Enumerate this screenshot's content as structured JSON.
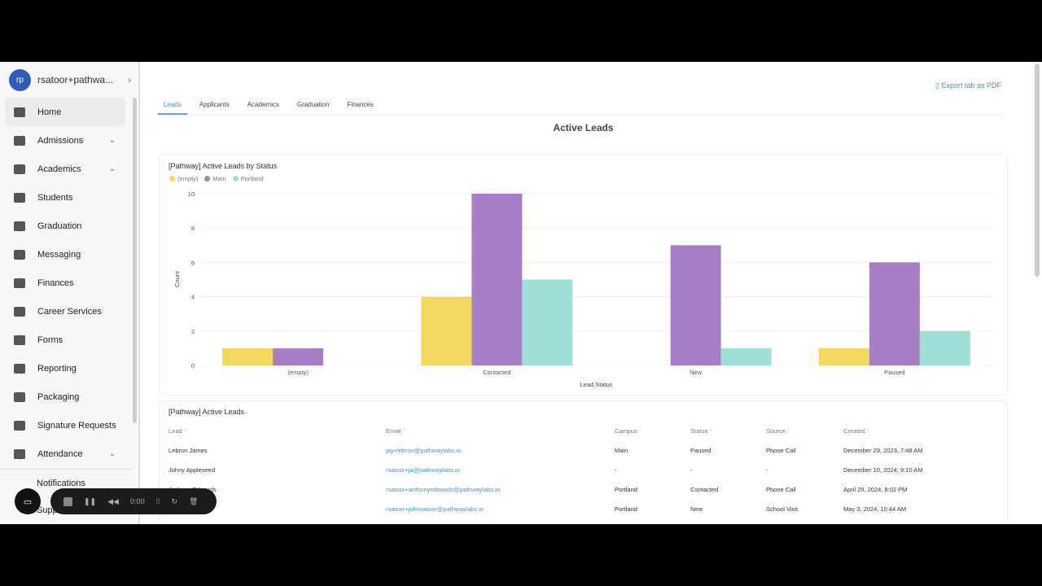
{
  "user": {
    "initials": "rp",
    "name": "rsatoor+pathwa..."
  },
  "nav": [
    {
      "label": "Home",
      "chev": false
    },
    {
      "label": "Admissions",
      "chev": true
    },
    {
      "label": "Academics",
      "chev": true
    },
    {
      "label": "Students",
      "chev": false
    },
    {
      "label": "Graduation",
      "chev": false
    },
    {
      "label": "Messaging",
      "chev": false
    },
    {
      "label": "Finances",
      "chev": false
    },
    {
      "label": "Career Services",
      "chev": false
    },
    {
      "label": "Forms",
      "chev": false
    },
    {
      "label": "Reporting",
      "chev": false
    },
    {
      "label": "Packaging",
      "chev": false
    },
    {
      "label": "Signature Requests",
      "chev": false
    },
    {
      "label": "Attendance",
      "chev": true
    }
  ],
  "footer_nav": {
    "notifications": "Notifications",
    "support": "Supp"
  },
  "export_label": "Export tab as PDF",
  "tabs": [
    "Leads",
    "Applicants",
    "Academics",
    "Graduation",
    "Finances"
  ],
  "page_title": "Active Leads",
  "chart_data": {
    "type": "bar",
    "title": "[Pathway] Active Leads by Status",
    "xlabel": "Lead Status",
    "ylabel": "Count",
    "ylim": [
      0,
      10
    ],
    "yticks": [
      "0",
      "2",
      "4",
      "6",
      "8",
      "10"
    ],
    "categories": [
      "(empty)",
      "Contacted",
      "New",
      "Paused"
    ],
    "series": [
      {
        "name": "(empty)",
        "color": "#f3d75e",
        "values": [
          1,
          4,
          0,
          1
        ]
      },
      {
        "name": "Main",
        "color": "#a67fc4",
        "values": [
          1,
          10,
          7,
          6
        ]
      },
      {
        "name": "Portland",
        "color": "#9fdfd6",
        "values": [
          0,
          5,
          1,
          2
        ]
      }
    ]
  },
  "table": {
    "title": "[Pathway] Active Leads",
    "columns": [
      "Lead",
      "Email",
      "Campus",
      "Status",
      "Source",
      "Created"
    ],
    "rows": [
      [
        "Lebron James",
        "jay+lebron@pathwaylabs.io",
        "Main",
        "Paused",
        "Phone Call",
        "December 29, 2023, 7:48 AM"
      ],
      [
        "Johny Appleseed",
        "rsatoor+ja@pathwaylabs.io",
        "-",
        "-",
        "-",
        "December 10, 2024, 9:10 AM"
      ],
      [
        "Anthony Edwards",
        "rsatoor+anthonyedwards@pathwaylabs.io",
        "Portland",
        "Contacted",
        "Phone Call",
        "April 29, 2024, 8:02 PM"
      ],
      [
        "",
        "rsatoor+johnsatoor@pathwaylabs.io",
        "Portland",
        "New",
        "School Visit",
        "May 3, 2024, 10:44 AM"
      ]
    ]
  },
  "recorder": {
    "time": "0:00"
  }
}
